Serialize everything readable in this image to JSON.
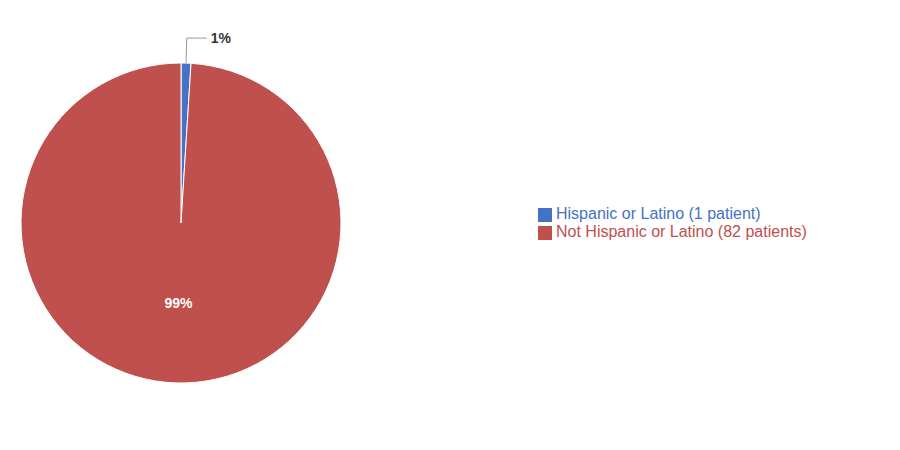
{
  "chart_data": {
    "type": "pie",
    "categories": [
      "Hispanic or Latino (1 patient)",
      "Not Hispanic or Latino (82 patients)"
    ],
    "values": [
      1,
      99
    ],
    "value_labels": [
      "1%",
      "99%"
    ],
    "colors": [
      "#4472C4",
      "#C0504D"
    ],
    "data_labels": true,
    "legend": "right"
  }
}
